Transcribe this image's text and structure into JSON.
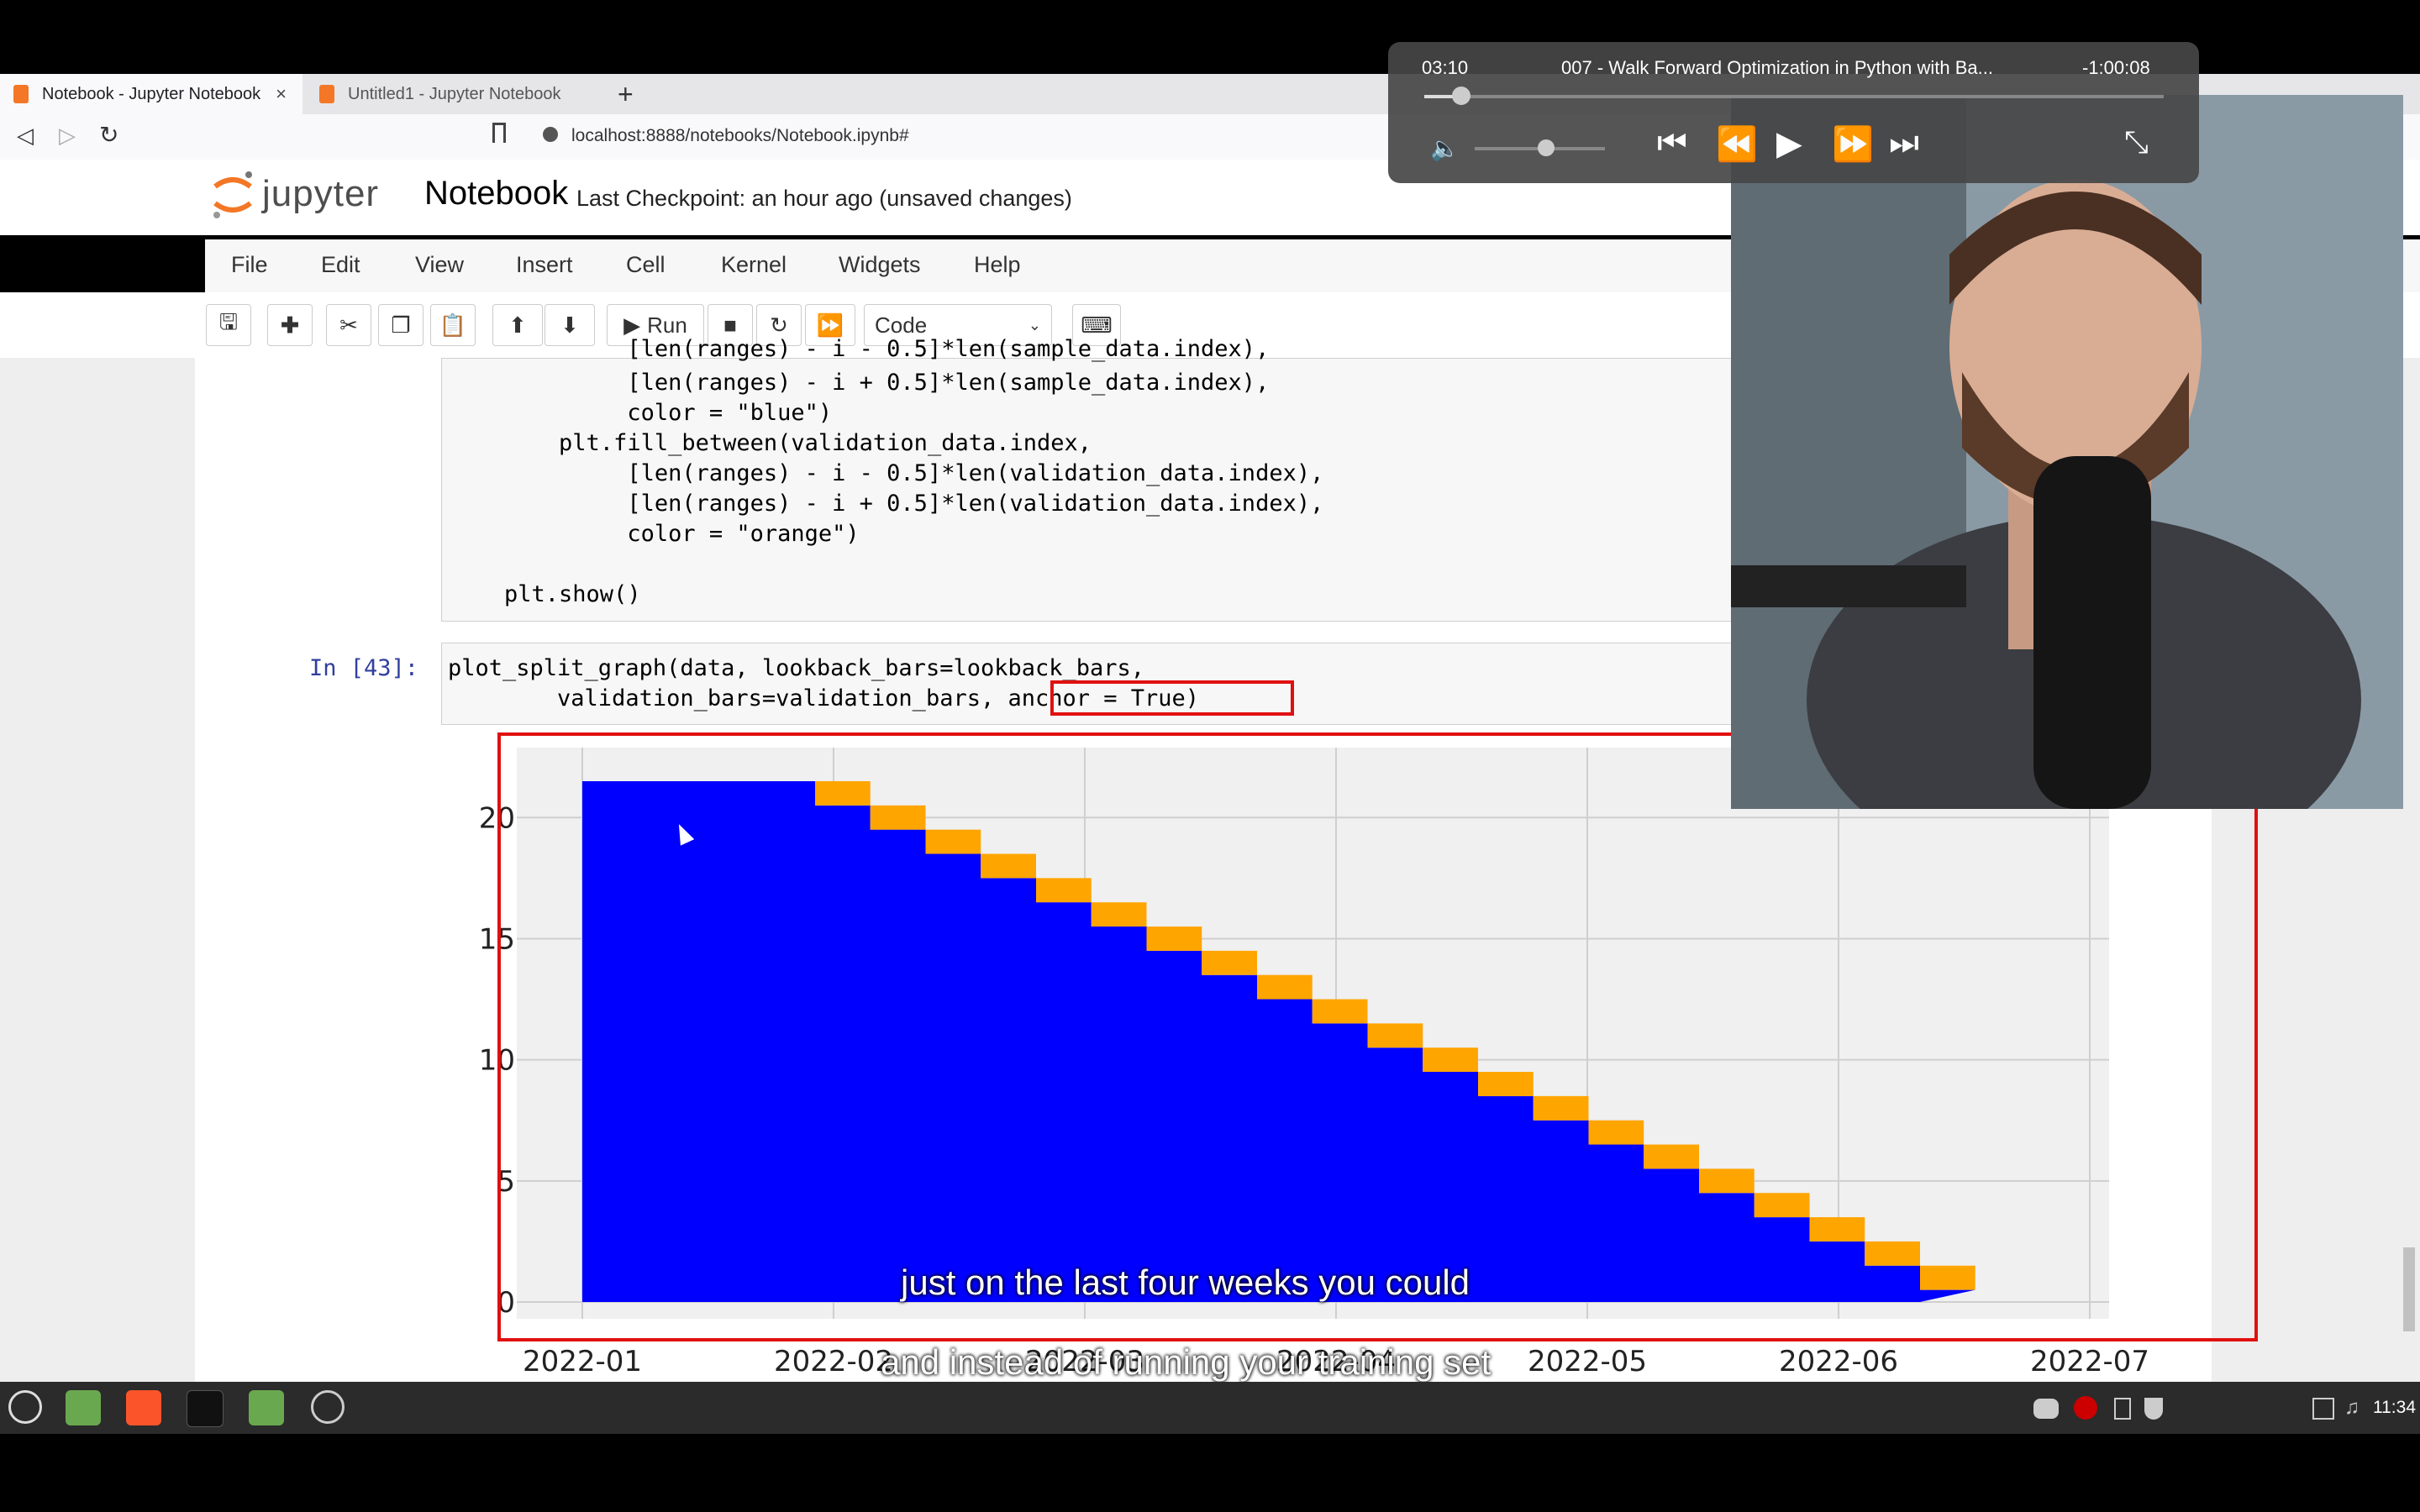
{
  "browser": {
    "tabs": [
      {
        "label": "Notebook - Jupyter Notebook",
        "close": "×"
      },
      {
        "label": "Untitled1 - Jupyter Notebook"
      }
    ],
    "new_tab": "+",
    "url": "localhost:8888/notebooks/Notebook.ipynb#"
  },
  "jupyter": {
    "logo": "jupyter",
    "notebook_name": "Notebook",
    "checkpoint": "Last Checkpoint: an hour ago   (unsaved changes)",
    "menu": [
      "File",
      "Edit",
      "View",
      "Insert",
      "Cell",
      "Kernel",
      "Widgets",
      "Help"
    ],
    "toolbar": {
      "run_label": "Run",
      "cell_type": "Code"
    }
  },
  "cell1": {
    "lines": [
      "             [len(ranges) - i - 0.5]*len(sample_data.index),",
      "             [len(ranges) - i + 0.5]*len(sample_data.index),",
      "             color = \"blue\")",
      "        plt.fill_between(validation_data.index,",
      "             [len(ranges) - i - 0.5]*len(validation_data.index),",
      "             [len(ranges) - i + 0.5]*len(validation_data.index),",
      "             color = \"orange\")",
      "",
      "    plt.show()"
    ]
  },
  "cell2": {
    "prompt": "In [43]:",
    "line1": "plot_split_graph(data, lookback_bars=lookback_bars,",
    "line2": "        validation_bars=validation_bars, anchor = True)"
  },
  "chart_data": {
    "type": "area",
    "title": "",
    "xlabel": "",
    "ylabel": "",
    "x_ticks": [
      "2022-01",
      "2022-02",
      "2022-03",
      "2022-04",
      "2022-05",
      "2022-06",
      "2022-07"
    ],
    "y_ticks": [
      "0",
      "5",
      "10",
      "15",
      "20"
    ],
    "ylim": [
      0,
      21.5
    ],
    "grid": true,
    "series": [
      {
        "color": "#0000ff",
        "steps": [
          [
            0,
            21.5
          ],
          [
            21,
            0
          ]
        ]
      },
      {
        "color": "#ffa500",
        "count": 21
      }
    ]
  },
  "video": {
    "elapsed": "03:10",
    "title": "007 - Walk Forward Optimization in Python with Ba...",
    "remaining": "-1:00:08",
    "progress": 0.05,
    "volume": 0.55
  },
  "subtitles": {
    "line1": "just on the last four weeks you could",
    "line2": "and instead of running your training set"
  },
  "taskbar": {
    "clock": "11:34"
  }
}
